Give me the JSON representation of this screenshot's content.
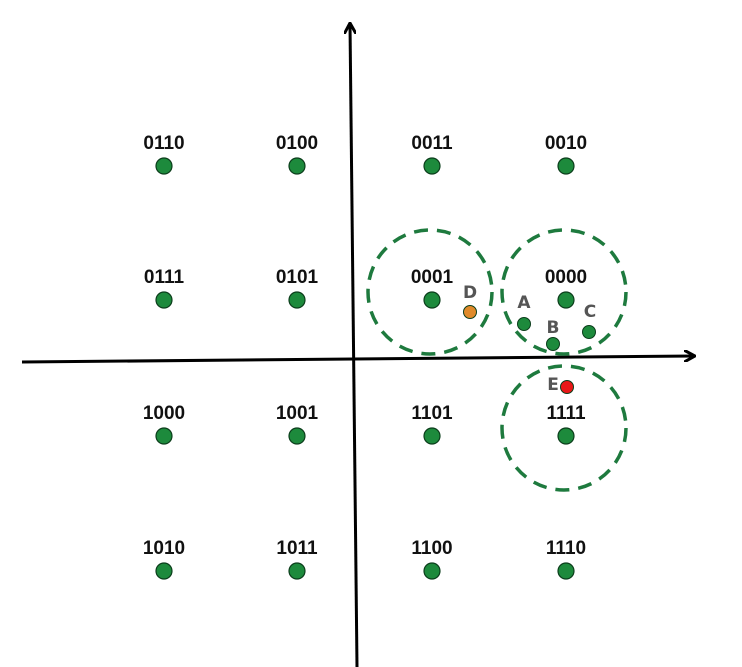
{
  "colors": {
    "point": "#1d8a3c",
    "point_stroke": "#0b3d1b",
    "circle": "#1e7a3e",
    "axis": "#000000",
    "D": "#e08a2a",
    "E": "#e81818",
    "label": "#111111",
    "letter": "#555555"
  },
  "constellation": {
    "type": "16-QAM",
    "rows": [
      [
        "0110",
        "0100",
        "0011",
        "0010"
      ],
      [
        "0111",
        "0101",
        "0001",
        "0000"
      ],
      [
        "1000",
        "1001",
        "1101",
        "1111"
      ],
      [
        "1010",
        "1011",
        "1100",
        "1110"
      ]
    ]
  },
  "decision_regions_around": [
    "0001",
    "0000",
    "1111"
  ],
  "received_points": [
    {
      "label": "A",
      "near": "0000",
      "color": "point"
    },
    {
      "label": "B",
      "near": "0000",
      "color": "point"
    },
    {
      "label": "C",
      "near": "0000",
      "color": "point"
    },
    {
      "label": "D",
      "near": "0001",
      "color": "D"
    },
    {
      "label": "E",
      "near": "1111",
      "color": "E"
    }
  ]
}
